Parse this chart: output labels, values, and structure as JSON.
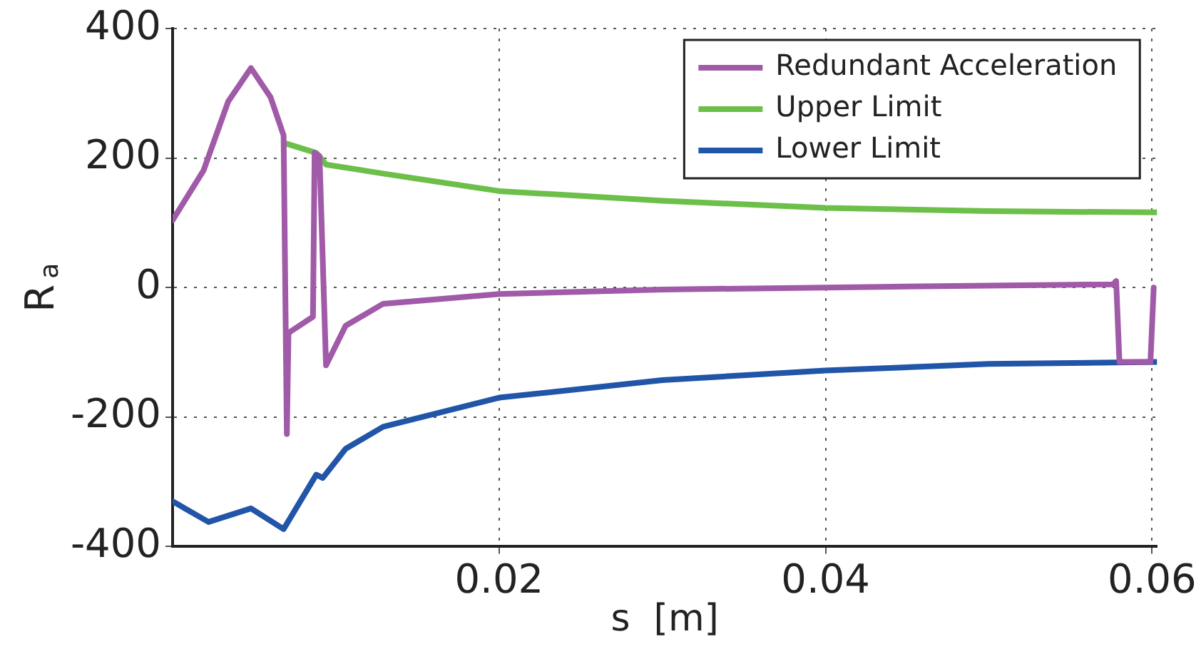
{
  "chart_data": {
    "type": "line",
    "xlabel": "s  [m]",
    "ylabel": "R$_{a}$",
    "xlim": [
      0,
      0.0603
    ],
    "ylim": [
      -400,
      400
    ],
    "xticks": [
      0.02,
      0.04,
      0.06
    ],
    "yticks": [
      -400,
      -200,
      0,
      200,
      400
    ],
    "grid": true,
    "legend": "top right",
    "line_style": "solid",
    "marker": "none",
    "series": [
      {
        "name": "Redundant Acceleration",
        "color": "#a05aa8",
        "x": [
          0,
          0.0019,
          0.0034,
          0.0048,
          0.006,
          0.0068,
          0.007,
          0.0071,
          0.0086,
          0.0087,
          0.009,
          0.0094,
          0.0106,
          0.0129,
          0.02,
          0.03,
          0.04,
          0.05,
          0.0576,
          0.0578,
          0.058,
          0.0599,
          0.0601
        ],
        "values": [
          104,
          181,
          287,
          339,
          294,
          235,
          -226,
          -70,
          -45,
          208,
          203,
          -120,
          -59,
          -25,
          -10,
          -3,
          0,
          3,
          5,
          10,
          -115,
          -115,
          0
        ]
      },
      {
        "name": "Upper Limit",
        "color": "#6cc04a",
        "x": [
          0.007,
          0.0088,
          0.0094,
          0.0129,
          0.02,
          0.03,
          0.04,
          0.05,
          0.0603
        ],
        "values": [
          222,
          208,
          190,
          176,
          149,
          134,
          123,
          118,
          116
        ]
      },
      {
        "name": "Lower Limit",
        "color": "#2155a8",
        "x": [
          0,
          0.0022,
          0.0048,
          0.0068,
          0.0088,
          0.0092,
          0.0106,
          0.0129,
          0.02,
          0.03,
          0.04,
          0.05,
          0.0603
        ],
        "values": [
          -330,
          -362,
          -341,
          -373,
          -289,
          -294,
          -249,
          -215,
          -170,
          -143,
          -128,
          -118,
          -115
        ]
      }
    ]
  }
}
